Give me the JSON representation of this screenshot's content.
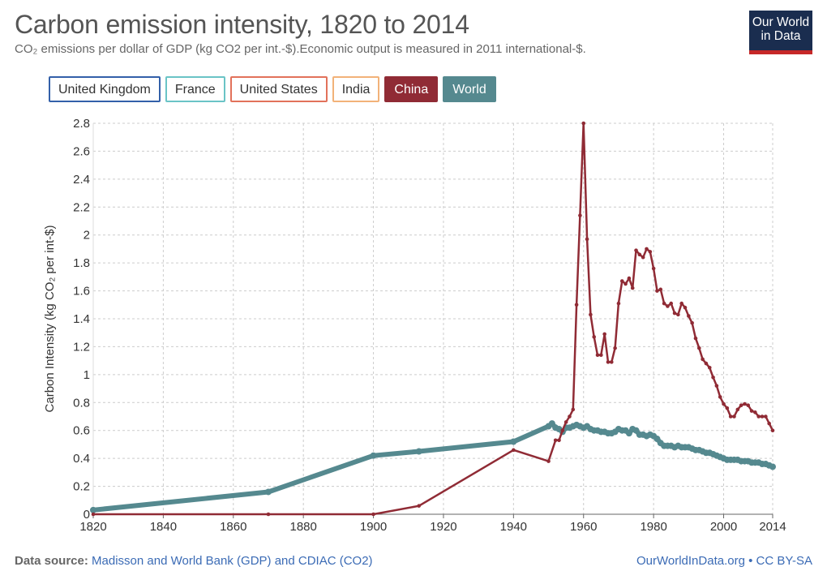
{
  "header": {
    "title": "Carbon emission intensity, 1820 to 2014",
    "subtitle": "CO₂ emissions per dollar of GDP (kg CO2 per int.-$).Economic output is measured in 2011 international-$.",
    "logo_line1": "Our World",
    "logo_line2": "in Data",
    "logo_color": "#1a2d4f",
    "logo_accent": "#c62828"
  },
  "legend": [
    {
      "label": "United Kingdom",
      "color": "#3360a9",
      "active": false
    },
    {
      "label": "France",
      "color": "#6ac4c6",
      "active": false
    },
    {
      "label": "United States",
      "color": "#e2725b",
      "active": false
    },
    {
      "label": "India",
      "color": "#f2b279",
      "active": false
    },
    {
      "label": "China",
      "color": "#902b35",
      "active": true
    },
    {
      "label": "World",
      "color": "#55898f",
      "active": true
    }
  ],
  "footer": {
    "source_label": "Data source:",
    "source_text": "Madisson and World Bank (GDP) and CDIAC (CO2)",
    "link_text": "OurWorldInData.org • CC BY-SA"
  },
  "chart_data": {
    "type": "line",
    "ylabel": "Carbon Intensity (kg CO₂ per int-$)",
    "xlim": [
      1820,
      2014
    ],
    "ylim": [
      0,
      2.8
    ],
    "x_ticks": [
      1820,
      1840,
      1860,
      1880,
      1900,
      1920,
      1940,
      1960,
      1980,
      2000,
      2014
    ],
    "y_ticks": [
      0,
      0.2,
      0.4,
      0.6,
      0.8,
      1,
      1.2,
      1.4,
      1.6,
      1.8,
      2,
      2.2,
      2.4,
      2.6,
      2.8
    ],
    "grid": true,
    "series": [
      {
        "name": "China",
        "color": "#902b35",
        "points": [
          [
            1820,
            0
          ],
          [
            1870,
            0
          ],
          [
            1900,
            0
          ],
          [
            1913,
            0.06
          ],
          [
            1940,
            0.46
          ],
          [
            1950,
            0.38
          ],
          [
            1952,
            0.53
          ],
          [
            1953,
            0.53
          ],
          [
            1954,
            0.6
          ],
          [
            1955,
            0.66
          ],
          [
            1956,
            0.7
          ],
          [
            1957,
            0.75
          ],
          [
            1958,
            1.5
          ],
          [
            1959,
            2.14
          ],
          [
            1960,
            2.8
          ],
          [
            1961,
            1.97
          ],
          [
            1962,
            1.43
          ],
          [
            1963,
            1.27
          ],
          [
            1964,
            1.14
          ],
          [
            1965,
            1.14
          ],
          [
            1966,
            1.29
          ],
          [
            1967,
            1.09
          ],
          [
            1968,
            1.09
          ],
          [
            1969,
            1.19
          ],
          [
            1970,
            1.51
          ],
          [
            1971,
            1.67
          ],
          [
            1972,
            1.65
          ],
          [
            1973,
            1.69
          ],
          [
            1974,
            1.62
          ],
          [
            1975,
            1.89
          ],
          [
            1976,
            1.86
          ],
          [
            1977,
            1.84
          ],
          [
            1978,
            1.9
          ],
          [
            1979,
            1.88
          ],
          [
            1980,
            1.76
          ],
          [
            1981,
            1.6
          ],
          [
            1982,
            1.61
          ],
          [
            1983,
            1.51
          ],
          [
            1984,
            1.49
          ],
          [
            1985,
            1.51
          ],
          [
            1986,
            1.44
          ],
          [
            1987,
            1.43
          ],
          [
            1988,
            1.51
          ],
          [
            1989,
            1.48
          ],
          [
            1990,
            1.42
          ],
          [
            1991,
            1.37
          ],
          [
            1992,
            1.26
          ],
          [
            1993,
            1.19
          ],
          [
            1994,
            1.11
          ],
          [
            1995,
            1.08
          ],
          [
            1996,
            1.05
          ],
          [
            1997,
            0.98
          ],
          [
            1998,
            0.92
          ],
          [
            1999,
            0.84
          ],
          [
            2000,
            0.79
          ],
          [
            2001,
            0.76
          ],
          [
            2002,
            0.7
          ],
          [
            2003,
            0.7
          ],
          [
            2004,
            0.75
          ],
          [
            2005,
            0.78
          ],
          [
            2006,
            0.79
          ],
          [
            2007,
            0.78
          ],
          [
            2008,
            0.74
          ],
          [
            2009,
            0.73
          ],
          [
            2010,
            0.7
          ],
          [
            2011,
            0.7
          ],
          [
            2012,
            0.7
          ],
          [
            2013,
            0.65
          ],
          [
            2014,
            0.6
          ]
        ]
      },
      {
        "name": "World",
        "color": "#55898f",
        "points": [
          [
            1820,
            0.03
          ],
          [
            1870,
            0.16
          ],
          [
            1900,
            0.42
          ],
          [
            1913,
            0.45
          ],
          [
            1940,
            0.52
          ],
          [
            1950,
            0.63
          ],
          [
            1951,
            0.65
          ],
          [
            1952,
            0.62
          ],
          [
            1953,
            0.61
          ],
          [
            1954,
            0.59
          ],
          [
            1955,
            0.62
          ],
          [
            1956,
            0.62
          ],
          [
            1957,
            0.63
          ],
          [
            1958,
            0.64
          ],
          [
            1959,
            0.63
          ],
          [
            1960,
            0.62
          ],
          [
            1961,
            0.63
          ],
          [
            1962,
            0.61
          ],
          [
            1963,
            0.6
          ],
          [
            1964,
            0.6
          ],
          [
            1965,
            0.59
          ],
          [
            1966,
            0.59
          ],
          [
            1967,
            0.58
          ],
          [
            1968,
            0.58
          ],
          [
            1969,
            0.59
          ],
          [
            1970,
            0.61
          ],
          [
            1971,
            0.6
          ],
          [
            1972,
            0.6
          ],
          [
            1973,
            0.58
          ],
          [
            1974,
            0.61
          ],
          [
            1975,
            0.6
          ],
          [
            1976,
            0.57
          ],
          [
            1977,
            0.57
          ],
          [
            1978,
            0.56
          ],
          [
            1979,
            0.57
          ],
          [
            1980,
            0.56
          ],
          [
            1981,
            0.54
          ],
          [
            1982,
            0.51
          ],
          [
            1983,
            0.49
          ],
          [
            1984,
            0.49
          ],
          [
            1985,
            0.49
          ],
          [
            1986,
            0.48
          ],
          [
            1987,
            0.49
          ],
          [
            1988,
            0.48
          ],
          [
            1989,
            0.48
          ],
          [
            1990,
            0.48
          ],
          [
            1991,
            0.47
          ],
          [
            1992,
            0.46
          ],
          [
            1993,
            0.46
          ],
          [
            1994,
            0.45
          ],
          [
            1995,
            0.44
          ],
          [
            1996,
            0.44
          ],
          [
            1997,
            0.43
          ],
          [
            1998,
            0.42
          ],
          [
            1999,
            0.41
          ],
          [
            2000,
            0.4
          ],
          [
            2001,
            0.39
          ],
          [
            2002,
            0.39
          ],
          [
            2003,
            0.39
          ],
          [
            2004,
            0.39
          ],
          [
            2005,
            0.38
          ],
          [
            2006,
            0.38
          ],
          [
            2007,
            0.38
          ],
          [
            2008,
            0.37
          ],
          [
            2009,
            0.37
          ],
          [
            2010,
            0.37
          ],
          [
            2011,
            0.36
          ],
          [
            2012,
            0.36
          ],
          [
            2013,
            0.35
          ],
          [
            2014,
            0.34
          ]
        ]
      }
    ]
  }
}
